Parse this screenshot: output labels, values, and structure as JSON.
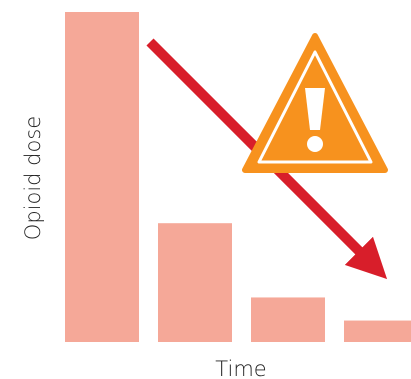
{
  "chart_data": {
    "type": "bar",
    "categories": [
      "",
      "",
      "",
      ""
    ],
    "values": [
      100,
      36,
      13.5,
      6.5
    ],
    "title": "",
    "xlabel": "Time",
    "ylabel": "Opioid dose",
    "ylim": [
      0,
      100
    ],
    "grid": false,
    "legend": "none",
    "bar_color": "#f5a898",
    "annotations": [
      {
        "type": "arrow",
        "direction": "down-right",
        "color": "#d81e2a"
      },
      {
        "type": "warning-sign",
        "symbol": "!",
        "color": "#f7921e",
        "border_color": "#ffffff"
      }
    ]
  }
}
